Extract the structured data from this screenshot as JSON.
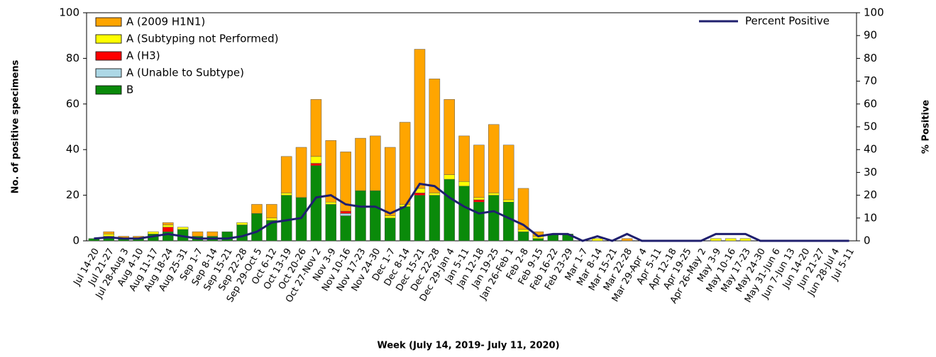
{
  "chart_data": {
    "type": "bar",
    "x_label": "Week (July 14, 2019- July 11, 2020)",
    "y_label": "No. of positive specimens",
    "y2_label": "% Positive",
    "categories": [
      "Jul 14-20",
      "Jul 21-27",
      "Jul 28-Aug 3",
      "Aug 4-10",
      "Aug 11-17",
      "Aug 18-24",
      "Aug 25-31",
      "Sep 1-7",
      "Sep 8-14",
      "Sep 15-21",
      "Sep 22-28",
      "Sep 29-Oct 5",
      "Oct 6-12",
      "Oct 13-19",
      "Oct 20-26",
      "Oct 27-Nov 2",
      "Nov 3-9",
      "Nov 10-16",
      "Nov 17-23",
      "Nov 24-30",
      "Dec 1-7",
      "Dec 8-14",
      "Dec 15-21",
      "Dec 22-28",
      "Dec 29-Jan 4",
      "Jan 5-11",
      "Jan 12-18",
      "Jan 19-25",
      "Jan 26-Feb 1",
      "Feb 2-8",
      "Feb 9-15",
      "Feb 16-22",
      "Feb 23-29",
      "Mar 1-7",
      "Mar 8-14",
      "Mar 15-21",
      "Mar 22-28",
      "Mar 29-Apr 4",
      "Apr 5-11",
      "Apr 12-18",
      "Apr 19-25",
      "Apr 26-May 2",
      "May 3-9",
      "May 10-16",
      "May 17-23",
      "May 24-30",
      "May 31-Jun 6",
      "Jun 7-Jun 13",
      "Jun 14-20",
      "Jun 21-27",
      "Jun 28-Jul 4",
      "Jul 5-11"
    ],
    "stacked": true,
    "series": [
      {
        "name": "A (2009 H1N1)",
        "color": "#ffa500",
        "values": [
          0,
          1,
          1,
          1,
          0,
          1,
          0,
          2,
          2,
          0,
          0,
          4,
          6,
          16,
          22,
          25,
          27,
          26,
          23,
          24,
          30,
          36,
          61,
          50,
          33,
          20,
          23,
          30,
          24,
          18,
          2,
          0,
          0,
          0,
          0,
          0,
          1,
          0,
          0,
          0,
          0,
          0,
          0,
          0,
          0,
          0,
          0,
          0,
          0,
          0,
          0,
          0
        ]
      },
      {
        "name": "A (Subtyping not Performed)",
        "color": "#ffff00",
        "values": [
          0,
          1,
          0,
          0,
          1,
          1,
          1,
          0,
          0,
          0,
          1,
          0,
          1,
          1,
          0,
          3,
          1,
          0,
          0,
          0,
          1,
          1,
          2,
          1,
          2,
          2,
          1,
          1,
          1,
          1,
          1,
          0,
          0,
          0,
          1,
          0,
          0,
          0,
          0,
          0,
          0,
          0,
          1,
          1,
          1,
          0,
          0,
          0,
          0,
          0,
          0,
          0
        ]
      },
      {
        "name": "A (H3)",
        "color": "#ff0000",
        "values": [
          0,
          0,
          0,
          0,
          0,
          2,
          0,
          0,
          0,
          0,
          0,
          0,
          0,
          0,
          0,
          1,
          0,
          1,
          0,
          0,
          0,
          0,
          1,
          0,
          0,
          0,
          1,
          0,
          0,
          0,
          0,
          0,
          0,
          0,
          0,
          0,
          0,
          0,
          0,
          0,
          0,
          0,
          0,
          0,
          0,
          0,
          0,
          0,
          0,
          0,
          0,
          0
        ]
      },
      {
        "name": "A (Unable to Subtype)",
        "color": "#add8e6",
        "values": [
          0,
          0,
          0,
          0,
          0,
          0,
          0,
          0,
          0,
          0,
          0,
          0,
          0,
          0,
          0,
          0,
          0,
          1,
          0,
          0,
          0,
          0,
          0,
          0,
          0,
          0,
          0,
          0,
          0,
          0,
          0,
          0,
          0,
          0,
          0,
          0,
          0,
          0,
          0,
          0,
          0,
          0,
          0,
          0,
          0,
          0,
          0,
          0,
          0,
          0,
          0,
          0
        ]
      },
      {
        "name": "B",
        "color": "#0a8a0a",
        "values": [
          1,
          2,
          1,
          1,
          3,
          4,
          5,
          2,
          2,
          4,
          7,
          12,
          9,
          20,
          19,
          33,
          16,
          11,
          22,
          22,
          10,
          15,
          20,
          20,
          27,
          24,
          17,
          20,
          17,
          4,
          1,
          3,
          3,
          0,
          0,
          0,
          0,
          0,
          0,
          0,
          0,
          0,
          0,
          0,
          0,
          0,
          0,
          0,
          0,
          0,
          0,
          0
        ]
      },
      {
        "name": "Percent Positive",
        "color": "#1f1f6e",
        "type": "line",
        "axis": "y2",
        "values": [
          1,
          1.5,
          1,
          1,
          2,
          3,
          2,
          1,
          1,
          1,
          2,
          4,
          8,
          9,
          10,
          19,
          20,
          16,
          15,
          15,
          12,
          15,
          25,
          24,
          19,
          15,
          12,
          13,
          10,
          7,
          2,
          3,
          3,
          0,
          2,
          0,
          3,
          0,
          0,
          0,
          0,
          0,
          3,
          3,
          3,
          0,
          0,
          0,
          0,
          0,
          0,
          0
        ]
      }
    ],
    "ylim": [
      0,
      100
    ],
    "yticks": [
      0,
      20,
      40,
      60,
      80,
      100
    ],
    "y2lim": [
      0,
      100
    ],
    "y2ticks": [
      0,
      10,
      20,
      30,
      40,
      50,
      60,
      70,
      80,
      90,
      100
    ],
    "grid": false
  }
}
